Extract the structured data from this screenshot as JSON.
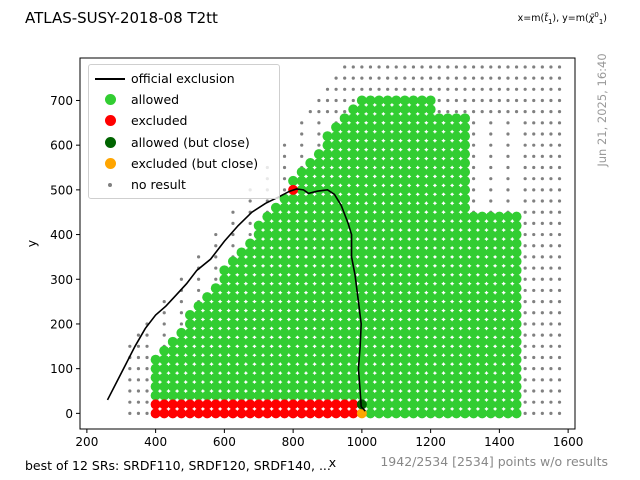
{
  "title": "ATLAS-SUSY-2018-08 T2tt",
  "axis_note": "x=m(t̃₁), y=m(χ̃⁰₁)",
  "timestamp": "Jun 21, 2025, 16:40",
  "footer_left": "best of 12 SRs: SRDF110, SRDF120, SRDF140, ...",
  "footer_right": "1942/2534 [2534] points w/o results",
  "legend": [
    {
      "label": "official exclusion",
      "kind": "line",
      "color": "#000000"
    },
    {
      "label": "allowed",
      "kind": "dot",
      "color": "#32cd32"
    },
    {
      "label": "excluded",
      "kind": "dot",
      "color": "#ff0000"
    },
    {
      "label": "allowed (but close)",
      "kind": "dot",
      "color": "#006400"
    },
    {
      "label": "excluded (but close)",
      "kind": "dot",
      "color": "#ffa500"
    },
    {
      "label": "no result",
      "kind": "small",
      "color": "#808080"
    }
  ],
  "chart_data": {
    "type": "scatter",
    "xlabel": "x",
    "ylabel": "y",
    "xlim": [
      180,
      1620
    ],
    "ylim": [
      -35,
      795
    ],
    "xticks": [
      200,
      400,
      600,
      800,
      1000,
      1200,
      1400,
      1600
    ],
    "yticks": [
      0,
      100,
      200,
      300,
      400,
      500,
      600,
      700
    ],
    "grid": false,
    "legend_position": "top-left",
    "colors": {
      "allowed": "#32cd32",
      "excluded": "#ff0000",
      "allowed_close": "#006400",
      "excluded_close": "#ffa500",
      "no_result": "#808080",
      "exclusion": "#000000"
    },
    "exclusion_line": [
      [
        260,
        30
      ],
      [
        300,
        90
      ],
      [
        340,
        150
      ],
      [
        370,
        190
      ],
      [
        400,
        220
      ],
      [
        430,
        240
      ],
      [
        460,
        265
      ],
      [
        490,
        290
      ],
      [
        520,
        320
      ],
      [
        560,
        345
      ],
      [
        600,
        385
      ],
      [
        640,
        420
      ],
      [
        680,
        450
      ],
      [
        720,
        470
      ],
      [
        760,
        485
      ],
      [
        790,
        497
      ],
      [
        810,
        502
      ],
      [
        830,
        500
      ],
      [
        845,
        492
      ],
      [
        870,
        497
      ],
      [
        900,
        500
      ],
      [
        920,
        490
      ],
      [
        940,
        465
      ],
      [
        960,
        425
      ],
      [
        970,
        400
      ],
      [
        970,
        350
      ],
      [
        980,
        310
      ],
      [
        990,
        250
      ],
      [
        998,
        200
      ],
      [
        995,
        150
      ],
      [
        990,
        100
      ],
      [
        995,
        50
      ],
      [
        998,
        15
      ],
      [
        1010,
        5
      ]
    ],
    "allowed": [],
    "excluded": [],
    "allowed_close": [],
    "excluded_close": [],
    "no_result_note": "grid of small grey markers over the whole (m_stop, m_LSP) plane, 25 GeV spacing"
  }
}
